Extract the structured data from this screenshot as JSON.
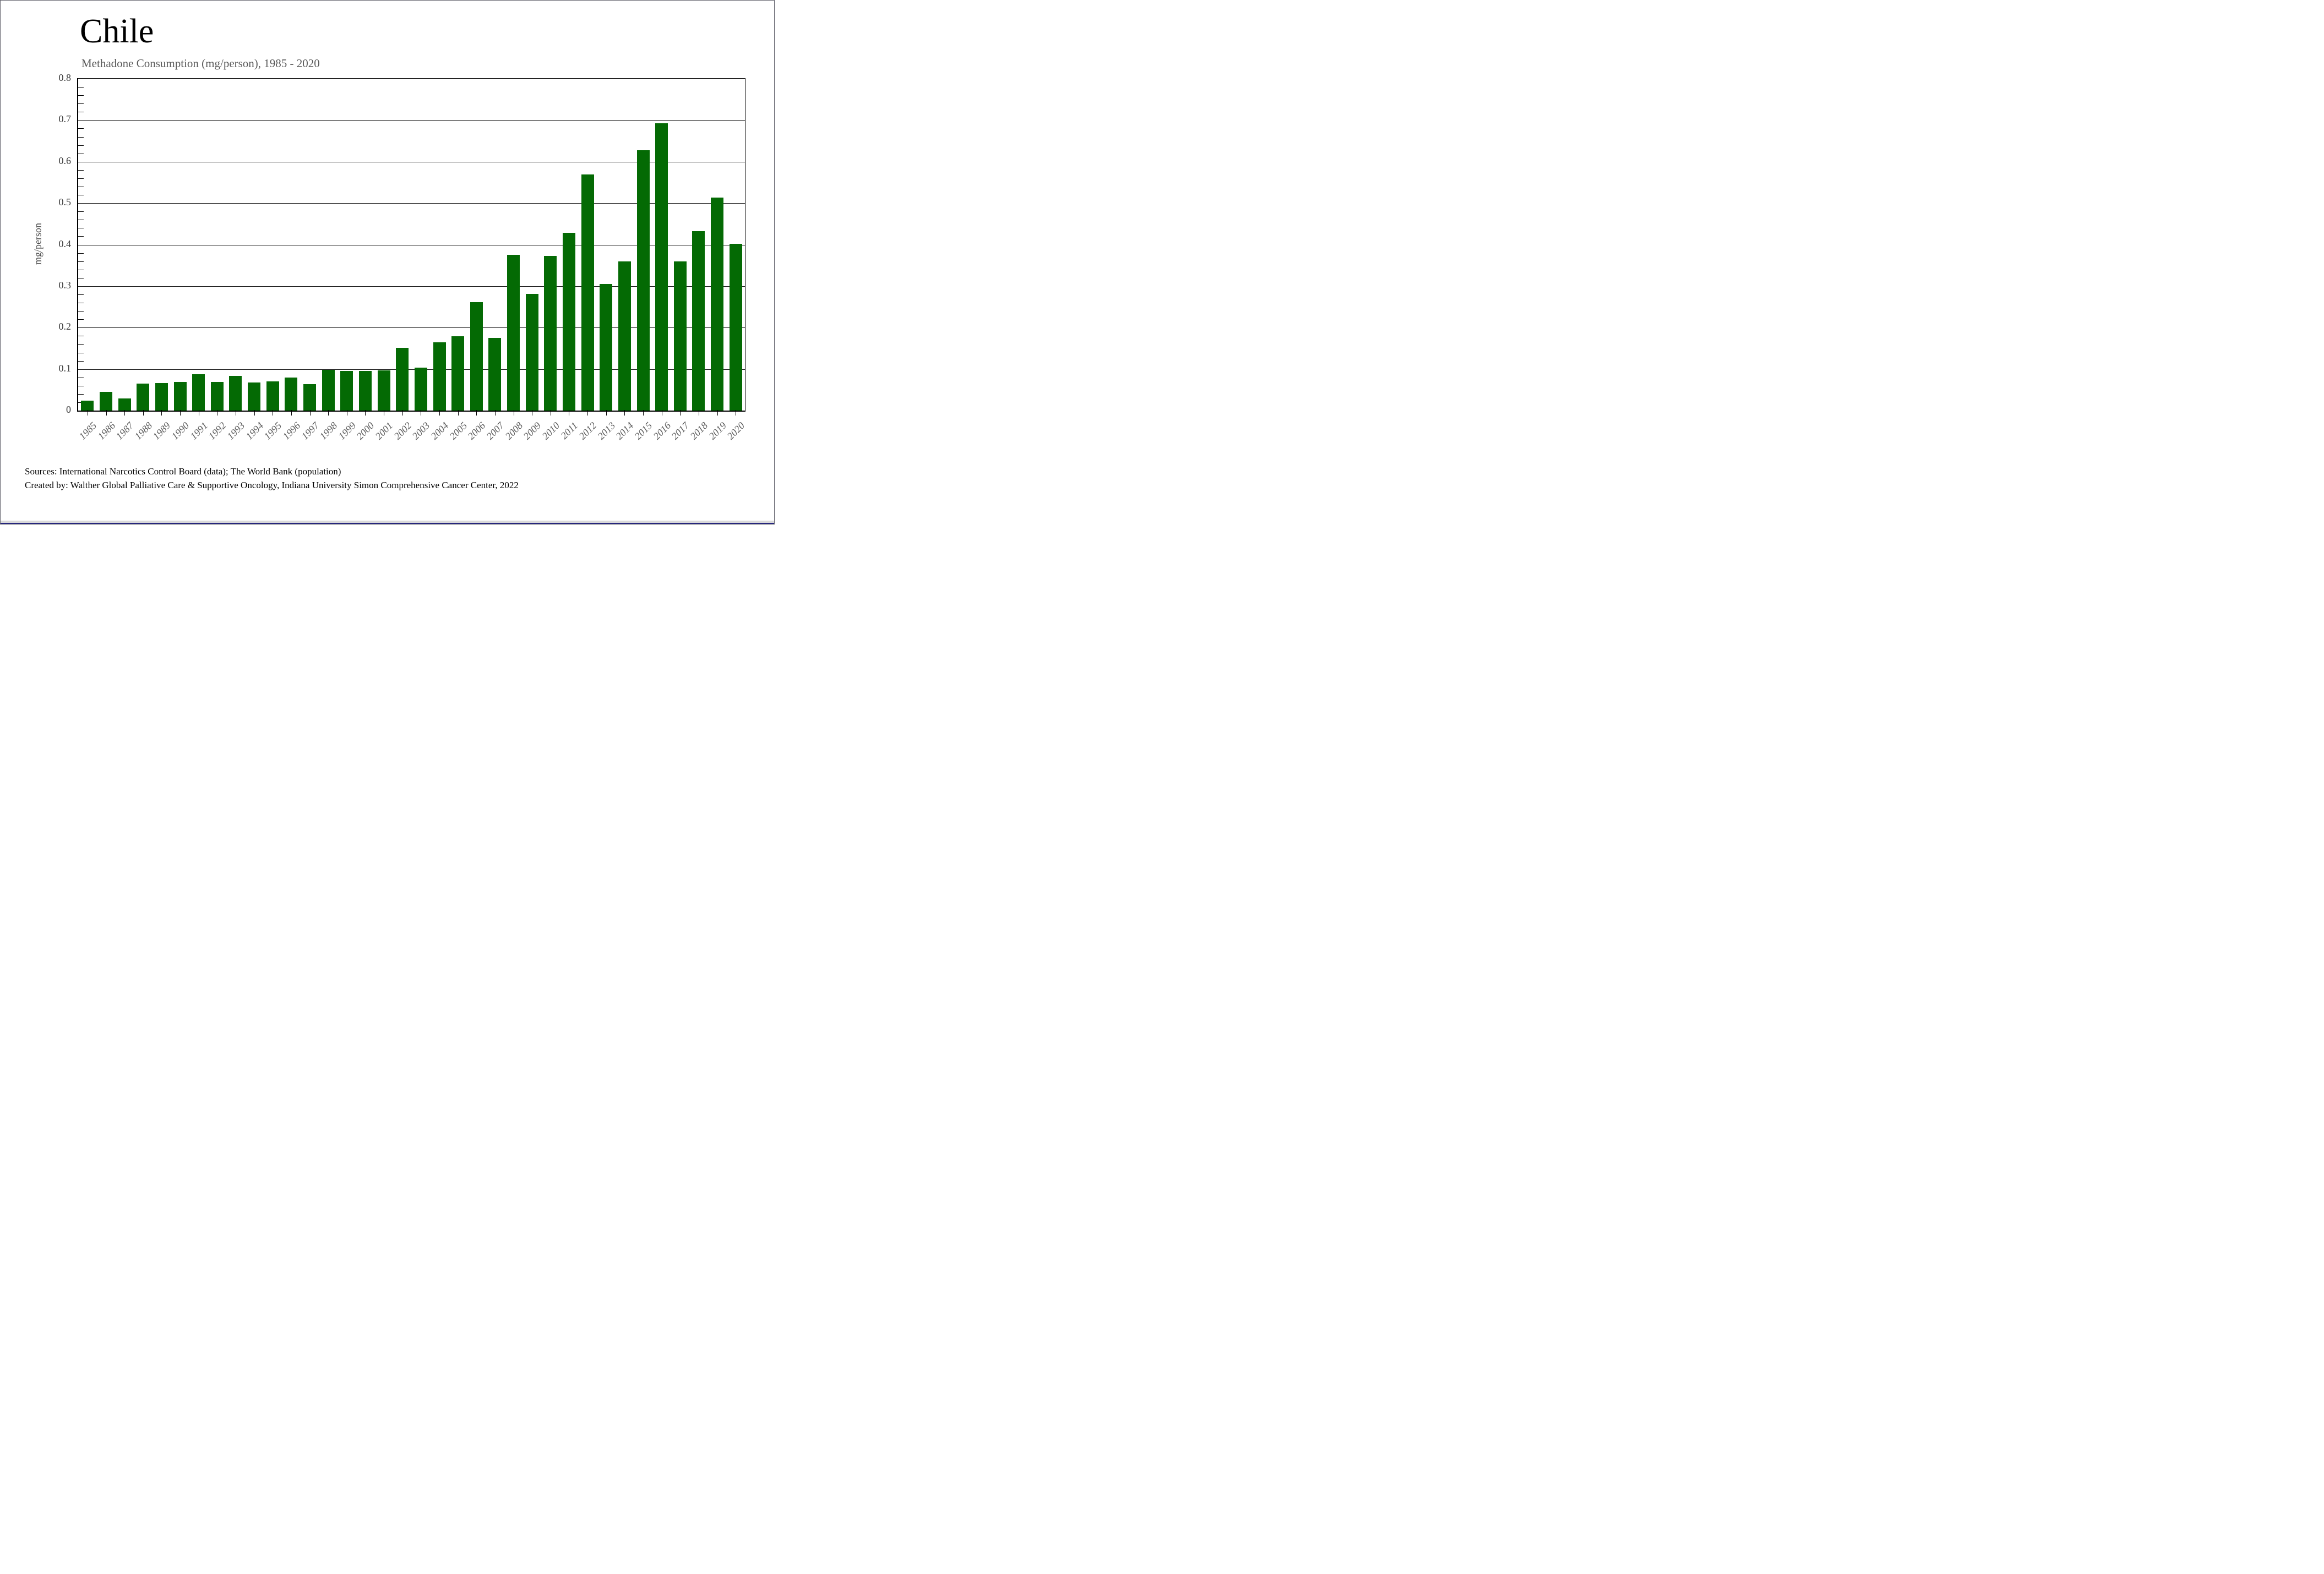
{
  "title": "Chile",
  "subtitle": "Methadone Consumption (mg/person), 1985 - 2020",
  "footer": {
    "line1": "Sources: International Narcotics Control Board (data); The World Bank (population)",
    "line2": "Created by: Walther Global Palliative Care & Supportive Oncology, Indiana University Simon Comprehensive Cancer Center, 2022"
  },
  "chart_data": {
    "type": "bar",
    "title": "Chile",
    "subtitle": "Methadone Consumption (mg/person), 1985 - 2020",
    "xlabel": "",
    "ylabel": "mg/person",
    "ylim": [
      0,
      0.8
    ],
    "ytick_step": 0.1,
    "yminor_step": 0.02,
    "ytick_labels": [
      "0",
      "0.1",
      "0.2",
      "0.3",
      "0.4",
      "0.5",
      "0.6",
      "0.7",
      "0.8"
    ],
    "grid": "horizontal-major",
    "legend_position": "none",
    "bar_color": "#046a04",
    "categories": [
      1985,
      1986,
      1987,
      1988,
      1989,
      1990,
      1991,
      1992,
      1993,
      1994,
      1995,
      1996,
      1997,
      1998,
      1999,
      2000,
      2001,
      2002,
      2003,
      2004,
      2005,
      2006,
      2007,
      2008,
      2009,
      2010,
      2011,
      2012,
      2013,
      2014,
      2015,
      2016,
      2017,
      2018,
      2019,
      2020
    ],
    "values": [
      0.024,
      0.045,
      0.029,
      0.065,
      0.066,
      0.069,
      0.087,
      0.069,
      0.083,
      0.068,
      0.071,
      0.08,
      0.064,
      0.098,
      0.095,
      0.096,
      0.097,
      0.151,
      0.104,
      0.165,
      0.179,
      0.262,
      0.175,
      0.375,
      0.281,
      0.373,
      0.429,
      0.569,
      0.305,
      0.36,
      0.628,
      0.692,
      0.359,
      0.433,
      0.514,
      0.402
    ]
  }
}
